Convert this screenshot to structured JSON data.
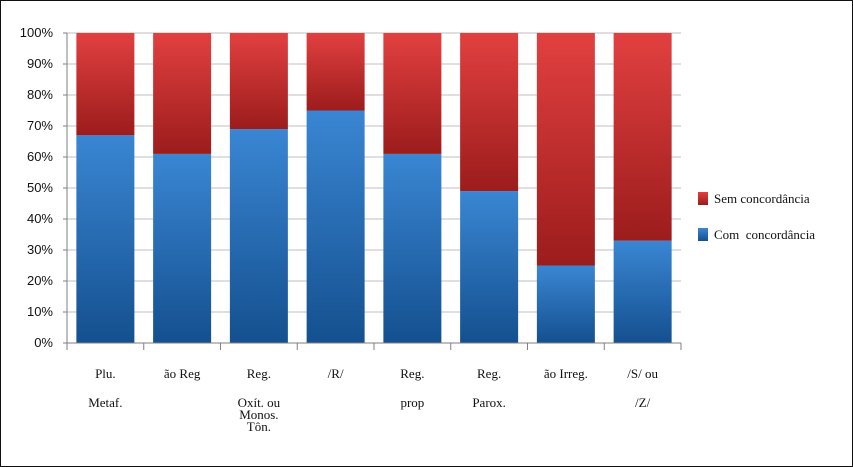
{
  "chart_data": {
    "type": "bar",
    "stacked": true,
    "percent_stacked": true,
    "title": "",
    "xlabel": "",
    "ylabel": "",
    "ylim": [
      0,
      100
    ],
    "yticks": [
      "0%",
      "10%",
      "20%",
      "30%",
      "40%",
      "50%",
      "60%",
      "70%",
      "80%",
      "90%",
      "100%"
    ],
    "grid": true,
    "legend_position": "right",
    "categories": [
      [
        "Plu.",
        "Metaf."
      ],
      [
        "ão Reg"
      ],
      [
        "Reg.",
        "Oxít. ou",
        "Monos.",
        "Tôn."
      ],
      [
        "/R/"
      ],
      [
        "Reg.",
        "prop"
      ],
      [
        "Reg.",
        "Parox."
      ],
      [
        "ão Irreg."
      ],
      [
        "/S/ ou",
        "/Z/"
      ]
    ],
    "series": [
      {
        "name": "Com  concordância",
        "color_light": "#3a86d3",
        "color_dark": "#14508f",
        "values": [
          67,
          61,
          69,
          75,
          61,
          49,
          25,
          33
        ]
      },
      {
        "name": "Sem concordância",
        "color_light": "#e24040",
        "color_dark": "#9c1c1c",
        "values": [
          33,
          39,
          31,
          25,
          39,
          51,
          75,
          67
        ]
      }
    ],
    "legend_order": [
      "Sem concordância",
      "Com  concordância"
    ]
  }
}
